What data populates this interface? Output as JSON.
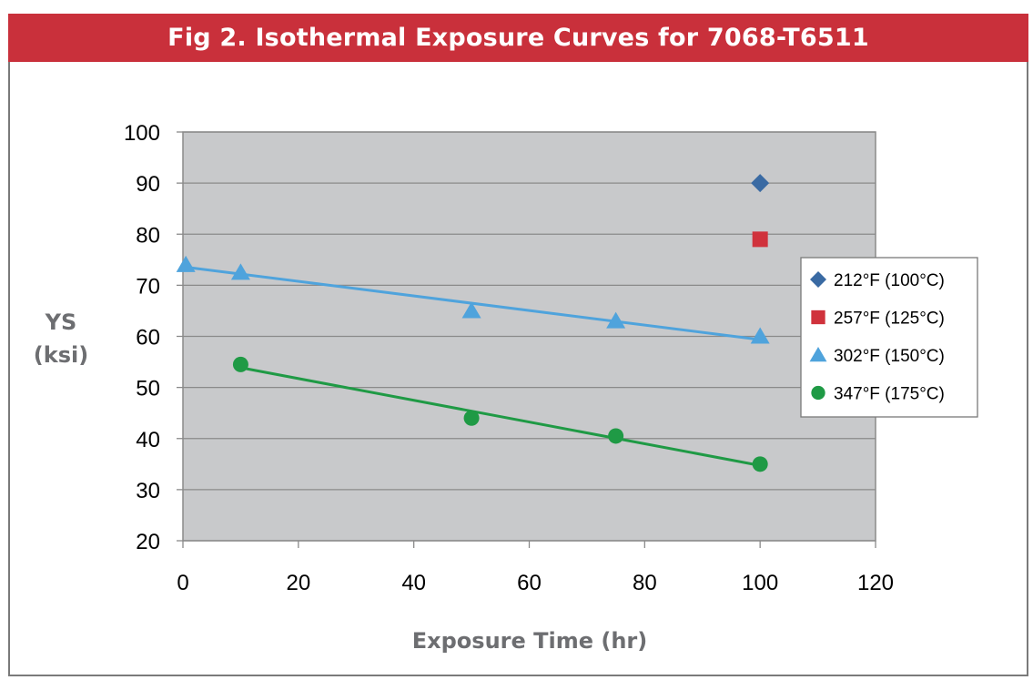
{
  "colors": {
    "title_bar": "#c9303b",
    "title_text": "#ffffff",
    "plot_background": "#c8c9cb",
    "gridline": "#8a8a8a",
    "axis_title": "#6d6e71",
    "s212": "#3a6aa3",
    "s257": "#d0323c",
    "s302": "#4fa3dc",
    "s347": "#1f9a45"
  },
  "chart_data": {
    "type": "scatter",
    "title": "Fig 2. Isothermal Exposure Curves for 7068-T6511",
    "xlabel": "Exposure Time (hr)",
    "ylabel_line1": "YS",
    "ylabel_line2": "(ksi)",
    "xlim": [
      0,
      120
    ],
    "ylim": [
      20,
      100
    ],
    "xticks": [
      0,
      20,
      40,
      60,
      80,
      100,
      120
    ],
    "yticks": [
      20,
      30,
      40,
      50,
      60,
      70,
      80,
      90,
      100
    ],
    "grid": "horizontal",
    "legend_position": "right",
    "series": [
      {
        "name": "212°F (100°C)",
        "marker": "diamond",
        "color": "#3a6aa3",
        "points": [
          [
            100,
            90
          ]
        ],
        "trendline": false
      },
      {
        "name": "257°F (125°C)",
        "marker": "square",
        "color": "#d0323c",
        "points": [
          [
            100,
            79
          ]
        ],
        "trendline": false
      },
      {
        "name": "302°F (150°C)",
        "marker": "triangle",
        "color": "#4fa3dc",
        "points": [
          [
            0.5,
            74
          ],
          [
            10,
            72.5
          ],
          [
            50,
            65
          ],
          [
            75,
            63
          ],
          [
            100,
            60
          ]
        ],
        "trendline": true
      },
      {
        "name": "347°F (175°C)",
        "marker": "circle",
        "color": "#1f9a45",
        "points": [
          [
            10,
            54.5
          ],
          [
            50,
            44
          ],
          [
            75,
            40.5
          ],
          [
            100,
            35
          ]
        ],
        "trendline": true
      }
    ]
  }
}
